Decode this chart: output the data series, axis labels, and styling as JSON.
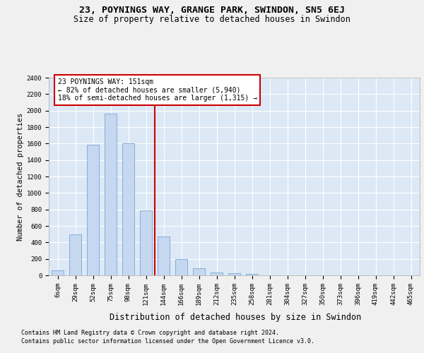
{
  "title_line1": "23, POYNINGS WAY, GRANGE PARK, SWINDON, SN5 6EJ",
  "title_line2": "Size of property relative to detached houses in Swindon",
  "xlabel": "Distribution of detached houses by size in Swindon",
  "ylabel": "Number of detached properties",
  "categories": [
    "6sqm",
    "29sqm",
    "52sqm",
    "75sqm",
    "98sqm",
    "121sqm",
    "144sqm",
    "166sqm",
    "189sqm",
    "212sqm",
    "235sqm",
    "258sqm",
    "281sqm",
    "304sqm",
    "327sqm",
    "350sqm",
    "373sqm",
    "396sqm",
    "419sqm",
    "442sqm",
    "465sqm"
  ],
  "bar_values": [
    60,
    500,
    1590,
    1960,
    1600,
    790,
    470,
    200,
    90,
    35,
    25,
    20,
    0,
    0,
    0,
    0,
    0,
    0,
    0,
    0,
    0
  ],
  "bar_color": "#c5d8f0",
  "bar_edge_color": "#6699cc",
  "vline_index": 5.5,
  "annotation_text_line1": "23 POYNINGS WAY: 151sqm",
  "annotation_text_line2": "← 82% of detached houses are smaller (5,940)",
  "annotation_text_line3": "18% of semi-detached houses are larger (1,315) →",
  "annotation_box_facecolor": "#ffffff",
  "annotation_box_edgecolor": "#cc0000",
  "vline_color": "#cc0000",
  "ylim_max": 2400,
  "yticks": [
    0,
    200,
    400,
    600,
    800,
    1000,
    1200,
    1400,
    1600,
    1800,
    2000,
    2200,
    2400
  ],
  "footnote1": "Contains HM Land Registry data © Crown copyright and database right 2024.",
  "footnote2": "Contains public sector information licensed under the Open Government Licence v3.0.",
  "fig_facecolor": "#f0f0f0",
  "plot_bg_color": "#dce8f5",
  "grid_color": "#ffffff",
  "title1_fontsize": 9.5,
  "title2_fontsize": 8.5,
  "xlabel_fontsize": 8.5,
  "ylabel_fontsize": 7.5,
  "tick_fontsize": 6.5,
  "annot_fontsize": 7,
  "footnote_fontsize": 6
}
